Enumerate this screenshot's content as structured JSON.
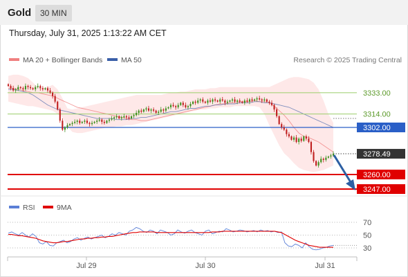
{
  "header": {
    "instrument": "Gold",
    "timeframe_tab": "30 MIN",
    "timestamp": "Thursday, July 31, 2025 1:13:22 AM CET"
  },
  "legend": {
    "bollinger_label": "MA 20 + Bollinger Bands",
    "ma50_label": "MA 50",
    "copyright": "Research © 2025 Trading Central"
  },
  "colors": {
    "bollinger": "#f08080",
    "bollinger_fill": "#fde0e0",
    "ma50": "#3a5fa8",
    "level_green": "#9acd6a",
    "level_blue": "#2a5fc7",
    "level_red": "#e00000",
    "candle_green": "#3f8f1f",
    "candle_red": "#c02020",
    "arrow": "#2d5fa3",
    "rsi": "#5b7fd6",
    "rsi_ma": "#e00000"
  },
  "chart_data": [
    {
      "type": "candlestick",
      "title": "Gold",
      "x_ticks": [
        "Jul 29",
        "Jul 30",
        "Jul 31"
      ],
      "ylim": [
        3240,
        3345
      ],
      "levels": [
        {
          "value": 3333.0,
          "label": "3333.00",
          "style": "green"
        },
        {
          "value": 3314.0,
          "label": "3314.00",
          "style": "green"
        },
        {
          "value": 3302.0,
          "label": "3302.00",
          "style": "blue"
        },
        {
          "value": 3278.49,
          "label": "3278.49",
          "style": "last"
        },
        {
          "value": 3260.0,
          "label": "3260.00",
          "style": "red"
        },
        {
          "value": 3247.0,
          "label": "3247.00",
          "style": "red"
        }
      ],
      "close": [
        3339,
        3337,
        3335,
        3336,
        3338,
        3337,
        3336,
        3339,
        3338,
        3337,
        3336,
        3338,
        3339,
        3337,
        3336,
        3337,
        3335,
        3333,
        3330,
        3325,
        3318,
        3308,
        3300,
        3302,
        3304,
        3305,
        3306,
        3307,
        3308,
        3306,
        3307,
        3308,
        3306,
        3305,
        3306,
        3307,
        3308,
        3309,
        3307,
        3306,
        3308,
        3309,
        3310,
        3311,
        3312,
        3310,
        3311,
        3312,
        3311,
        3310,
        3312,
        3313,
        3315,
        3317,
        3316,
        3318,
        3319,
        3317,
        3318,
        3317,
        3315,
        3316,
        3318,
        3317,
        3319,
        3320,
        3322,
        3321,
        3320,
        3322,
        3324,
        3322,
        3320,
        3321,
        3323,
        3325,
        3324,
        3326,
        3327,
        3325,
        3324,
        3326,
        3325,
        3327,
        3326,
        3325,
        3327,
        3326,
        3324,
        3325,
        3326,
        3327,
        3325,
        3326,
        3325,
        3324,
        3326,
        3325,
        3327,
        3326,
        3327,
        3328,
        3327,
        3326,
        3327,
        3325,
        3324,
        3322,
        3318,
        3312,
        3305,
        3302,
        3300,
        3296,
        3294,
        3291,
        3293,
        3289,
        3292,
        3290,
        3294,
        3292,
        3289,
        3280,
        3272,
        3268,
        3271,
        3274,
        3273,
        3275,
        3276,
        3277,
        3278.49
      ],
      "bollinger_mid": [
        3337,
        3337,
        3336,
        3335,
        3334,
        3333,
        3333,
        3332,
        3331,
        3330,
        3328,
        3326,
        3324,
        3322,
        3320,
        3319,
        3318,
        3317,
        3316,
        3315,
        3314,
        3313,
        3312,
        3311,
        3310,
        3309,
        3309,
        3308,
        3308,
        3309,
        3310,
        3311,
        3312,
        3313,
        3314,
        3315,
        3316,
        3317,
        3318,
        3319,
        3320,
        3321,
        3322,
        3323,
        3323,
        3324,
        3324,
        3325,
        3325,
        3325,
        3326,
        3325,
        3325,
        3324,
        3321,
        3317,
        3313,
        3308,
        3302,
        3297,
        3294,
        3293,
        3291,
        3289,
        3286,
        3283,
        3280
      ],
      "bollinger_upper": [
        3348,
        3349,
        3349,
        3348,
        3346,
        3342,
        3338,
        3337,
        3338,
        3340,
        3336,
        3328,
        3319,
        3318,
        3319,
        3320,
        3321,
        3322,
        3323,
        3324,
        3325,
        3326,
        3327,
        3328,
        3329,
        3330,
        3331,
        3331,
        3331,
        3331,
        3331,
        3331,
        3332,
        3333,
        3333,
        3334,
        3334,
        3335,
        3336,
        3336,
        3336,
        3337,
        3337,
        3338,
        3338,
        3338,
        3338,
        3338,
        3338,
        3338,
        3338,
        3338,
        3338,
        3338,
        3340,
        3342,
        3344,
        3346,
        3347,
        3347,
        3346,
        3345,
        3342,
        3336,
        3326,
        3314,
        3306
      ],
      "bollinger_lower": [
        3325,
        3324,
        3323,
        3322,
        3321,
        3321,
        3320,
        3319,
        3318,
        3317,
        3314,
        3311,
        3303,
        3298,
        3297,
        3297,
        3298,
        3299,
        3300,
        3301,
        3302,
        3302,
        3303,
        3303,
        3304,
        3304,
        3305,
        3306,
        3307,
        3308,
        3309,
        3310,
        3311,
        3312,
        3313,
        3314,
        3315,
        3316,
        3317,
        3318,
        3318,
        3319,
        3319,
        3320,
        3320,
        3320,
        3321,
        3321,
        3321,
        3321,
        3321,
        3320,
        3314,
        3304,
        3295,
        3286,
        3279,
        3275,
        3270,
        3266,
        3264,
        3263,
        3262,
        3263,
        3264,
        3266,
        3268
      ],
      "ma50": [
        3336,
        3336,
        3335,
        3334,
        3333,
        3331,
        3328,
        3325,
        3322,
        3320,
        3318,
        3317,
        3316,
        3315,
        3314,
        3313,
        3312,
        3311,
        3310,
        3310,
        3310,
        3310,
        3309,
        3309,
        3309,
        3310,
        3310,
        3311,
        3311,
        3312,
        3313,
        3314,
        3315,
        3316,
        3316,
        3317,
        3318,
        3319,
        3319,
        3320,
        3321,
        3321,
        3322,
        3322,
        3323,
        3323,
        3323,
        3324,
        3324,
        3324,
        3325,
        3325,
        3324,
        3324,
        3323,
        3322,
        3321,
        3320,
        3318,
        3316,
        3314,
        3312,
        3310,
        3308,
        3306,
        3304,
        3302
      ]
    },
    {
      "type": "line",
      "title": "RSI",
      "series": [
        {
          "name": "RSI",
          "values": [
            53,
            55,
            52,
            50,
            54,
            50,
            47,
            52,
            48,
            38,
            36,
            40,
            34,
            33,
            38,
            40,
            42,
            38,
            40,
            44,
            46,
            42,
            45,
            47,
            44,
            46,
            48,
            50,
            46,
            48,
            52,
            50,
            54,
            52,
            50,
            56,
            58,
            62,
            60,
            56,
            54,
            58,
            56,
            52,
            58,
            56,
            54,
            50,
            52,
            58,
            55,
            53,
            56,
            58,
            54,
            52,
            50,
            56,
            58,
            52,
            54,
            56,
            55,
            60,
            58,
            55,
            56,
            58,
            57,
            55,
            56,
            57,
            55,
            58,
            56,
            57,
            55,
            56,
            54,
            55,
            38,
            33,
            32,
            36,
            34,
            30,
            38,
            32,
            28,
            27,
            28,
            30,
            31,
            33,
            34
          ]
        },
        {
          "name": "9MA",
          "values": [
            51,
            51,
            50,
            49,
            49,
            48,
            47,
            46,
            45,
            43,
            41,
            40,
            39,
            38,
            38,
            39,
            40,
            40,
            41,
            42,
            43,
            44,
            44,
            45,
            45,
            46,
            46,
            47,
            47,
            48,
            48,
            49,
            50,
            51,
            52,
            53,
            54,
            54,
            55,
            55,
            55,
            55,
            55,
            54,
            54,
            54,
            54,
            54,
            54,
            54,
            54,
            54,
            54,
            54,
            54,
            54,
            54,
            54,
            54,
            55,
            55,
            55,
            56,
            56,
            56,
            56,
            56,
            56,
            56,
            56,
            56,
            56,
            56,
            56,
            56,
            56,
            56,
            56,
            55,
            54,
            51,
            48,
            45,
            42,
            40,
            38,
            36,
            34,
            33,
            32,
            31,
            31,
            31,
            31,
            31
          ]
        }
      ],
      "y_ticks": [
        "70",
        "50",
        "30"
      ],
      "ylim": [
        10,
        90
      ]
    }
  ]
}
